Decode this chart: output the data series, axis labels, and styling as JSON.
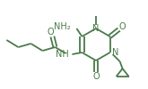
{
  "bg_color": "#ffffff",
  "bond_color": "#4a7a4a",
  "atom_color": "#4a7a4a",
  "bond_width": 1.3,
  "figsize": [
    1.65,
    1.0
  ],
  "dpi": 100,
  "xlim": [
    0,
    165
  ],
  "ylim": [
    0,
    100
  ]
}
